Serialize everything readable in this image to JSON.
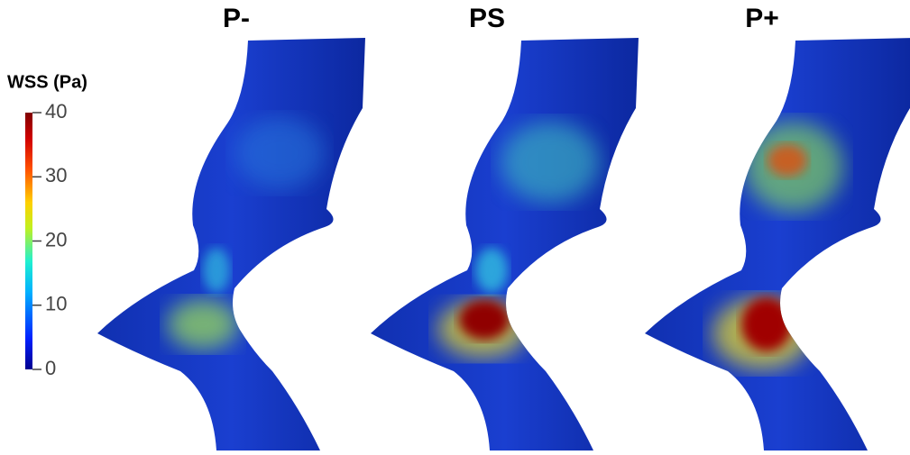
{
  "colorbar": {
    "title": "WSS (Pa)",
    "lim": [
      0,
      40
    ],
    "ticks": [
      0,
      10,
      20,
      30,
      40
    ]
  },
  "panels": [
    {
      "title": "P-"
    },
    {
      "title": "PS"
    },
    {
      "title": "P+"
    }
  ]
}
